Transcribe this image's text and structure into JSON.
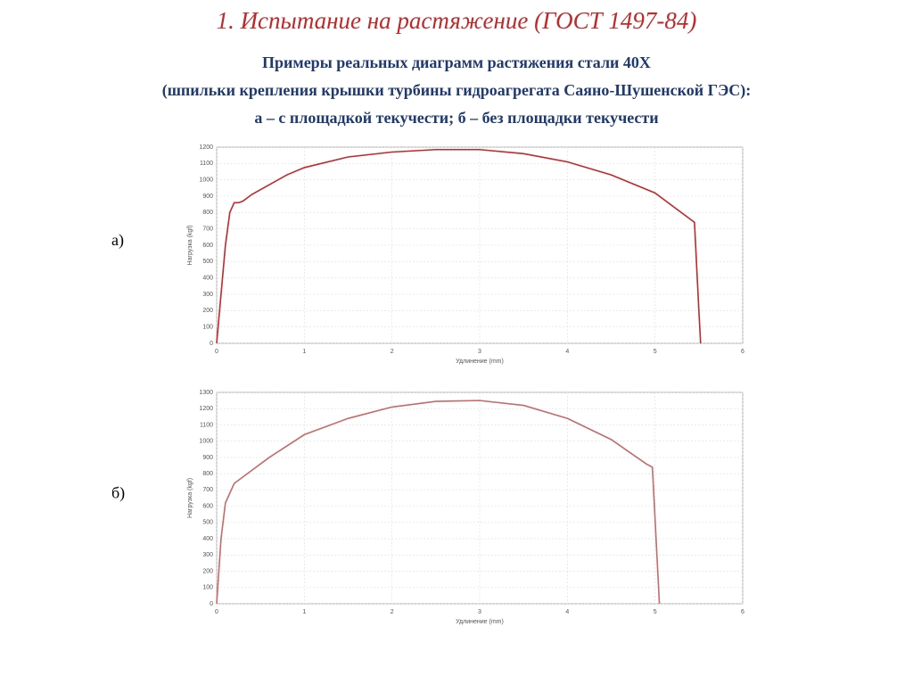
{
  "title": "1. Испытание на растяжение (ГОСТ 1497-84)",
  "subtitle": [
    "Примеры реальных диаграмм растяжения стали 40Х",
    "(шпильки крепления крышки турбины гидроагрегата Саяно-Шушенской ГЭС):",
    "а – с площадкой текучести; б – без площадки текучести"
  ],
  "chart_data": [
    {
      "type": "line",
      "label": "а)",
      "xlabel": "Удлинение (mm)",
      "ylabel": "Нагрузка (kgf)",
      "xlim": [
        0,
        6
      ],
      "xticks": [
        0,
        1,
        2,
        3,
        4,
        5,
        6
      ],
      "ylim": [
        0,
        1200
      ],
      "yticks": [
        0,
        100,
        200,
        300,
        400,
        500,
        600,
        700,
        800,
        900,
        1000,
        1100,
        1200
      ],
      "grid": true,
      "x": [
        0,
        0.05,
        0.1,
        0.15,
        0.2,
        0.25,
        0.3,
        0.4,
        0.6,
        0.8,
        1,
        1.5,
        2,
        2.5,
        3,
        3.5,
        4,
        4.5,
        5,
        5.4,
        5.45,
        5.5,
        5.52
      ],
      "series": [
        {
          "color": "#c0282a",
          "values": [
            0,
            300,
            600,
            800,
            860,
            860,
            870,
            910,
            970,
            1030,
            1075,
            1140,
            1170,
            1185,
            1185,
            1160,
            1110,
            1030,
            920,
            760,
            740,
            200,
            0
          ]
        }
      ]
    },
    {
      "type": "line",
      "label": "б)",
      "xlabel": "Удлинение (mm)",
      "ylabel": "Нагрузка (kgf)",
      "xlim": [
        0,
        6
      ],
      "xticks": [
        0,
        1,
        2,
        3,
        4,
        5,
        6
      ],
      "ylim": [
        0,
        1300
      ],
      "yticks": [
        0,
        100,
        200,
        300,
        400,
        500,
        600,
        700,
        800,
        900,
        1000,
        1100,
        1200,
        1300
      ],
      "grid": true,
      "x": [
        0,
        0.05,
        0.1,
        0.2,
        0.4,
        0.6,
        1,
        1.5,
        2,
        2.5,
        3,
        3.5,
        4,
        4.5,
        4.9,
        4.97,
        5.05
      ],
      "series": [
        {
          "color": "#c46a6a",
          "values": [
            0,
            400,
            620,
            740,
            820,
            900,
            1040,
            1140,
            1210,
            1245,
            1250,
            1220,
            1140,
            1010,
            860,
            840,
            0
          ]
        }
      ]
    }
  ]
}
